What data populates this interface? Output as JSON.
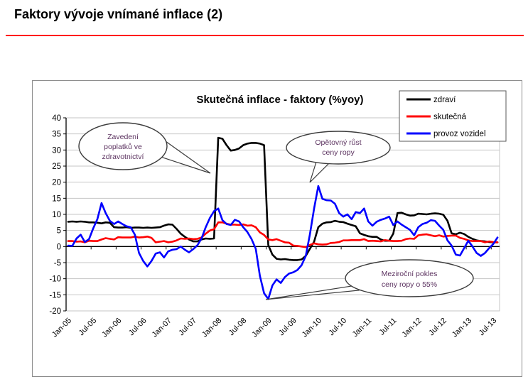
{
  "page": {
    "title": "Faktory vývoje vnímané inflace (2)",
    "accent_color": "#ff0000"
  },
  "chart_data": {
    "type": "line",
    "title": "Skutečná inflace - faktory (%yoy)",
    "xlabel": "",
    "ylabel": "",
    "ylim": [
      -20,
      40
    ],
    "ytick_step": 5,
    "yticks": [
      40,
      35,
      30,
      25,
      20,
      15,
      10,
      5,
      0,
      -5,
      -10,
      -15,
      -20
    ],
    "grid": true,
    "legend_position": "top-right",
    "x_start": "Jan-05",
    "x_end": "Aug-13",
    "x_frequency": "monthly",
    "x_tick_labels": [
      "Jan-05",
      "Jul-05",
      "Jan-06",
      "Jul-06",
      "Jan-07",
      "Jul-07",
      "Jan-08",
      "Jul-08",
      "Jan-09",
      "Jul-09",
      "Jan-10",
      "Jul-10",
      "Jan-11",
      "Jul-11",
      "Jan-12",
      "Jul-12",
      "Jan-13",
      "Jul-13"
    ],
    "series": [
      {
        "name": "zdraví",
        "color": "#000000",
        "values": [
          7.7,
          7.8,
          7.7,
          7.8,
          7.7,
          7.5,
          7.5,
          7.4,
          7.2,
          7.5,
          7.4,
          6.0,
          5.9,
          5.9,
          6.0,
          5.8,
          5.9,
          5.9,
          5.8,
          5.9,
          5.8,
          5.9,
          6.0,
          6.5,
          6.9,
          6.8,
          5.5,
          4.0,
          3.0,
          2.2,
          1.6,
          1.6,
          2.2,
          2.5,
          2.4,
          2.5,
          33.8,
          33.5,
          31.5,
          29.8,
          30.0,
          30.5,
          31.5,
          32.0,
          32.2,
          32.2,
          32.0,
          31.5,
          0.5,
          -2.5,
          -3.8,
          -4.0,
          -3.9,
          -4.1,
          -4.2,
          -4.2,
          -4.0,
          -2.9,
          -0.7,
          1.5,
          6.0,
          7.1,
          7.5,
          7.6,
          8.0,
          7.7,
          7.6,
          7.1,
          6.7,
          6.3,
          4.1,
          3.6,
          3.2,
          3.0,
          3.0,
          2.2,
          1.8,
          1.8,
          4.0,
          10.4,
          10.5,
          10.0,
          9.6,
          9.7,
          10.2,
          10.1,
          10.0,
          10.2,
          10.3,
          10.2,
          9.9,
          8.0,
          4.1,
          3.8,
          4.3,
          3.9,
          3.0,
          2.4,
          1.9,
          1.7,
          1.6,
          1.4,
          1.3,
          1.3
        ]
      },
      {
        "name": "skutečná",
        "color": "#ff0000",
        "values": [
          1.7,
          1.7,
          1.5,
          1.6,
          1.3,
          1.8,
          1.7,
          1.7,
          2.2,
          2.6,
          2.4,
          2.2,
          2.9,
          2.8,
          2.8,
          2.8,
          3.1,
          2.8,
          2.9,
          3.1,
          2.7,
          1.3,
          1.5,
          1.7,
          1.3,
          1.5,
          1.9,
          2.5,
          2.4,
          2.5,
          2.3,
          2.4,
          2.8,
          4.0,
          5.0,
          5.4,
          7.5,
          7.5,
          7.1,
          6.8,
          6.8,
          6.7,
          6.9,
          6.5,
          6.6,
          6.0,
          4.4,
          3.6,
          2.2,
          2.0,
          2.3,
          1.8,
          1.3,
          1.2,
          0.3,
          0.2,
          0.0,
          -0.2,
          0.5,
          1.0,
          0.7,
          0.6,
          0.7,
          1.1,
          1.2,
          1.4,
          1.9,
          1.9,
          2.0,
          2.0,
          2.0,
          2.3,
          1.7,
          1.8,
          1.7,
          1.6,
          2.0,
          1.8,
          1.7,
          1.7,
          1.8,
          2.3,
          2.5,
          2.4,
          3.5,
          3.7,
          3.8,
          3.5,
          3.2,
          3.5,
          3.1,
          3.3,
          3.4,
          3.4,
          2.7,
          2.4,
          1.9,
          1.7,
          1.7,
          1.7,
          1.3,
          1.6,
          1.4,
          1.3
        ]
      },
      {
        "name": "provoz vozidel",
        "color": "#0000ff",
        "values": [
          0.3,
          0.2,
          2.5,
          3.7,
          1.4,
          2.3,
          5.6,
          8.5,
          13.5,
          10.4,
          8.0,
          7.0,
          7.8,
          7.0,
          6.3,
          6.0,
          3.7,
          -2.0,
          -4.5,
          -6.2,
          -4.5,
          -2.2,
          -1.8,
          -3.4,
          -1.5,
          -1.0,
          -0.8,
          0.0,
          -1.0,
          -1.8,
          -0.8,
          0.4,
          2.5,
          6.0,
          8.9,
          11.0,
          11.8,
          8.2,
          7.0,
          6.7,
          8.3,
          7.8,
          6.0,
          4.5,
          2.3,
          -0.7,
          -9.1,
          -14.5,
          -16.3,
          -12.1,
          -10.2,
          -11.3,
          -9.5,
          -8.4,
          -8.0,
          -7.3,
          -5.8,
          -2.9,
          3.8,
          11.8,
          18.8,
          14.8,
          14.4,
          14.3,
          13.3,
          10.4,
          9.3,
          10.0,
          8.5,
          10.7,
          10.4,
          11.8,
          7.8,
          6.5,
          7.7,
          8.3,
          8.7,
          9.3,
          6.7,
          7.8,
          6.8,
          6.0,
          5.2,
          3.5,
          6.0,
          7.0,
          7.4,
          8.2,
          8.0,
          6.5,
          5.2,
          1.9,
          0.3,
          -2.5,
          -2.8,
          -0.5,
          1.8,
          0.0,
          -2.0,
          -2.9,
          -2.0,
          -0.5,
          0.8,
          2.8
        ]
      }
    ],
    "annotations": [
      {
        "text": "Zavedení poplatků ve zdravotnictví",
        "lines": [
          "Zavedení",
          "poplatků ve",
          "zdravotnictví"
        ],
        "points_to": "Jan-08 zdraví spike"
      },
      {
        "text": "Opětovný růst ceny ropy",
        "lines": [
          "Opětovný růst",
          "ceny ropy"
        ],
        "points_to": "Jan-10 provoz vozidel peak"
      },
      {
        "text": "Meziroční pokles ceny ropy o 55%",
        "lines": [
          "Meziroční pokles",
          "ceny ropy o 55%"
        ],
        "points_to": "Jan-09 provoz vozidel trough"
      }
    ],
    "annotation_text_color": "#5c3360"
  }
}
